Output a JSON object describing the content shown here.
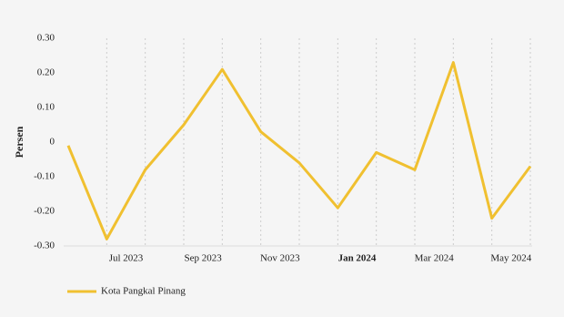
{
  "chart_data": {
    "type": "line",
    "ylabel": "Persen",
    "categories": [
      null,
      "Jul 2023",
      null,
      "Sep 2023",
      null,
      "Nov 2023",
      null,
      "Jan 2024",
      null,
      "Mar 2024",
      null,
      "May 2024",
      null
    ],
    "bold_categories": [
      7
    ],
    "series": [
      {
        "name": "Kota Pangkal Pinang",
        "color": "#f0c030",
        "values": [
          -0.01,
          -0.28,
          -0.08,
          0.05,
          0.21,
          0.03,
          -0.06,
          -0.19,
          -0.03,
          -0.08,
          0.23,
          -0.22,
          -0.07
        ]
      }
    ],
    "ylim": [
      -0.3,
      0.3
    ],
    "yticks": [
      {
        "value": -0.3,
        "label": "-0.30"
      },
      {
        "value": -0.2,
        "label": "-0.20"
      },
      {
        "value": -0.1,
        "label": "-0.10"
      },
      0,
      {
        "value": 0.1,
        "label": "0.10"
      },
      {
        "value": 0.2,
        "label": "0.20"
      },
      {
        "value": 0.3,
        "label": "0.30"
      }
    ],
    "grid": true,
    "legend": "bottom-left"
  }
}
